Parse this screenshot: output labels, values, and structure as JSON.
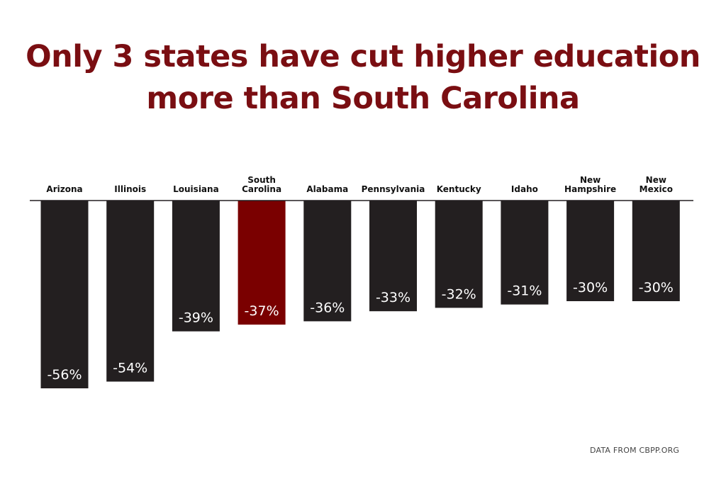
{
  "title_line1": "Only 3 states have cut higher education",
  "title_line2": "more than South Carolina",
  "source": "DATA FROM CBPP.ORG",
  "colors": {
    "title": "#7a0e12",
    "bar_default": "#231f20",
    "bar_highlight": "#7a0000",
    "bar_label": "#ffffff",
    "category_label": "#111111",
    "axis_line": "#231f20"
  },
  "chart_data": {
    "type": "bar",
    "categories": [
      [
        "Arizona"
      ],
      [
        "Illinois"
      ],
      [
        "Louisiana"
      ],
      [
        "South",
        "Carolina"
      ],
      [
        "Alabama"
      ],
      [
        "Pennsylvania"
      ],
      [
        "Kentucky"
      ],
      [
        "Idaho"
      ],
      [
        "New",
        "Hampshire"
      ],
      [
        "New",
        "Mexico"
      ]
    ],
    "values": [
      -56,
      -54,
      -39,
      -37,
      -36,
      -33,
      -32,
      -31,
      -30,
      -30
    ],
    "value_labels": [
      "-56%",
      "-54%",
      "-39%",
      "-37%",
      "-36%",
      "-33%",
      "-32%",
      "-31%",
      "-30%",
      "-30%"
    ],
    "highlight": "South Carolina",
    "unit": "%",
    "title": "Only 3 states have cut higher education more than South Carolina",
    "xlabel": "",
    "ylabel": "",
    "ylim": [
      -56,
      0
    ],
    "grid": false,
    "legend": "none",
    "category_labels_position": "top",
    "value_labels_position": "inside-bottom"
  }
}
